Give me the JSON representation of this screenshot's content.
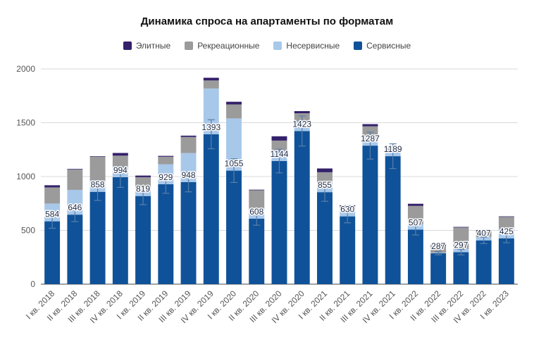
{
  "chart_data": {
    "type": "bar",
    "stacked": true,
    "title": "Динамика спроса на апартаменты по форматам",
    "xlabel": "",
    "ylabel": "",
    "ylim": [
      0,
      2000
    ],
    "yticks": [
      0,
      500,
      1000,
      1500,
      2000
    ],
    "grid": true,
    "legend_position": "top",
    "categories": [
      "I кв. 2018",
      "II кв. 2018",
      "III кв. 2018",
      "IV кв. 2018",
      "I кв. 2019",
      "II кв. 2019",
      "III кв. 2019",
      "IV кв. 2019",
      "I кв. 2020",
      "II кв. 2020",
      "III кв. 2020",
      "IV кв. 2020",
      "I кв. 2021",
      "II кв. 2021",
      "III кв. 2021",
      "IV кв. 2021",
      "I кв. 2022",
      "II кв. 2022",
      "III кв. 2022",
      "IV кв. 2022",
      "I кв. 2023"
    ],
    "legend_order": [
      "Элитные",
      "Рекреационные",
      "Несервисные",
      "Сервисные"
    ],
    "series": [
      {
        "name": "Сервисные",
        "color": "#0f5299",
        "values": [
          584,
          646,
          858,
          994,
          819,
          929,
          948,
          1393,
          1055,
          608,
          1144,
          1423,
          855,
          630,
          1287,
          1189,
          507,
          287,
          297,
          407,
          425
        ],
        "data_labels": true
      },
      {
        "name": "Несервисные",
        "color": "#a8c8ea",
        "values": [
          165,
          230,
          105,
          100,
          75,
          185,
          270,
          425,
          485,
          95,
          95,
          90,
          95,
          60,
          80,
          45,
          50,
          5,
          30,
          30,
          90
        ]
      },
      {
        "name": "Рекреационные",
        "color": "#9b9b9b",
        "values": [
          150,
          190,
          220,
          100,
          100,
          70,
          150,
          75,
          130,
          170,
          95,
          75,
          90,
          35,
          100,
          40,
          170,
          65,
          200,
          60,
          110
        ]
      },
      {
        "name": "Элитные",
        "color": "#34206b",
        "values": [
          20,
          5,
          5,
          25,
          15,
          8,
          12,
          25,
          25,
          5,
          40,
          20,
          35,
          8,
          20,
          5,
          20,
          10,
          5,
          5,
          5
        ]
      }
    ],
    "error_bars": {
      "series": "Сервисные",
      "plus_minus": [
        65,
        65,
        80,
        95,
        80,
        85,
        90,
        135,
        110,
        60,
        110,
        140,
        85,
        60,
        125,
        115,
        50,
        15,
        25,
        30,
        40
      ]
    }
  }
}
